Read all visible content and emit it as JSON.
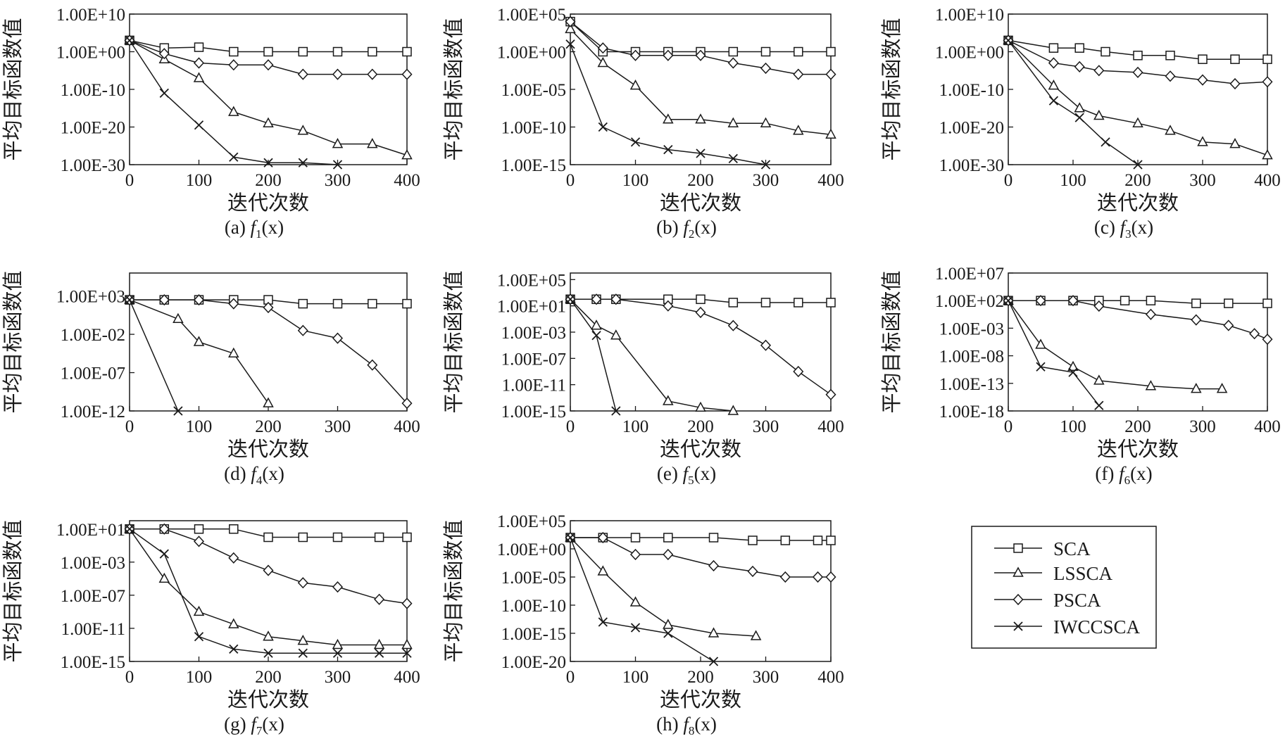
{
  "legend": {
    "items": [
      {
        "label": "SCA",
        "marker": "square"
      },
      {
        "label": "LSSCA",
        "marker": "triangle"
      },
      {
        "label": "PSCA",
        "marker": "diamond"
      },
      {
        "label": "IWCCSCA",
        "marker": "x"
      }
    ]
  },
  "chart_data": [
    {
      "panel": "a",
      "type": "line",
      "caption": {
        "prefix": "(a) ",
        "f": "f",
        "sub": "1",
        "suffix": "(x)"
      },
      "xlabel": "迭代次数",
      "ylabel": "平均目标函数值",
      "xlim": [
        0,
        400
      ],
      "xticks": [
        "0",
        "100",
        "200",
        "300",
        "400"
      ],
      "yscale": "log",
      "ylim_exp": [
        -30,
        10
      ],
      "yticks": [
        {
          "exp": 10,
          "label": "1.00E+10"
        },
        {
          "exp": 0,
          "label": "1.00E+00"
        },
        {
          "exp": -10,
          "label": "1.00E-10"
        },
        {
          "exp": -20,
          "label": "1.00E-20"
        },
        {
          "exp": -30,
          "label": "1.00E-30"
        }
      ],
      "series": [
        {
          "name": "SCA",
          "x": [
            0,
            50,
            100,
            150,
            200,
            250,
            300,
            350,
            400
          ],
          "y_exp": [
            3,
            1,
            1.2,
            0,
            0,
            0,
            0,
            0,
            0
          ]
        },
        {
          "name": "LSSCA",
          "x": [
            0,
            50,
            100,
            150,
            200,
            250,
            300,
            350,
            400
          ],
          "y_exp": [
            3,
            -2,
            -7,
            -16,
            -19,
            -21,
            -24.5,
            -24.5,
            -27.5
          ]
        },
        {
          "name": "PSCA",
          "x": [
            0,
            50,
            100,
            150,
            200,
            250,
            300,
            350,
            400
          ],
          "y_exp": [
            3,
            -0.5,
            -3,
            -3.5,
            -3.5,
            -6,
            -6,
            -6,
            -6
          ]
        },
        {
          "name": "IWCCSCA",
          "x": [
            0,
            50,
            100,
            150,
            200,
            250,
            300
          ],
          "y_exp": [
            3,
            -11,
            -19.5,
            -28,
            -29.5,
            -29.5,
            -30
          ]
        }
      ]
    },
    {
      "panel": "b",
      "type": "line",
      "caption": {
        "prefix": "(b) ",
        "f": "f",
        "sub": "2",
        "suffix": "(x)"
      },
      "xlabel": "迭代次数",
      "ylabel": "平均目标函数值",
      "xlim": [
        0,
        400
      ],
      "xticks": [
        "0",
        "100",
        "200",
        "300",
        "400"
      ],
      "yscale": "log",
      "ylim_exp": [
        -15,
        5
      ],
      "yticks": [
        {
          "exp": 5,
          "label": "1.00E+05"
        },
        {
          "exp": 0,
          "label": "1.00E+00"
        },
        {
          "exp": -5,
          "label": "1.00E-05"
        },
        {
          "exp": -10,
          "label": "1.00E-10"
        },
        {
          "exp": -15,
          "label": "1.00E-15"
        }
      ],
      "series": [
        {
          "name": "SCA",
          "x": [
            0,
            50,
            100,
            150,
            200,
            250,
            300,
            350,
            400
          ],
          "y_exp": [
            4,
            0,
            0,
            0,
            0,
            0,
            0,
            0,
            0
          ]
        },
        {
          "name": "LSSCA",
          "x": [
            0,
            50,
            100,
            150,
            200,
            250,
            300,
            350,
            400
          ],
          "y_exp": [
            3,
            -1.5,
            -4.5,
            -9,
            -9,
            -9.5,
            -9.5,
            -10.5,
            -11
          ]
        },
        {
          "name": "PSCA",
          "x": [
            0,
            50,
            100,
            150,
            200,
            250,
            300,
            350,
            400
          ],
          "y_exp": [
            4,
            0.5,
            -0.5,
            -0.5,
            -0.5,
            -1.5,
            -2.2,
            -3,
            -3
          ]
        },
        {
          "name": "IWCCSCA",
          "x": [
            0,
            50,
            100,
            150,
            200,
            250,
            300
          ],
          "y_exp": [
            1,
            -10,
            -12,
            -13,
            -13.5,
            -14.2,
            -15
          ]
        }
      ]
    },
    {
      "panel": "c",
      "type": "line",
      "caption": {
        "prefix": "(c) ",
        "f": "f",
        "sub": "3",
        "suffix": "(x)"
      },
      "xlabel": "迭代次数",
      "ylabel": "平均目标函数值",
      "xlim": [
        0,
        400
      ],
      "xticks": [
        "0",
        "100",
        "200",
        "300",
        "400"
      ],
      "yscale": "log",
      "ylim_exp": [
        -30,
        10
      ],
      "yticks": [
        {
          "exp": 10,
          "label": "1.00E+10"
        },
        {
          "exp": 0,
          "label": "1.00E+00"
        },
        {
          "exp": -10,
          "label": "1.00E-10"
        },
        {
          "exp": -20,
          "label": "1.00E-20"
        },
        {
          "exp": -30,
          "label": "1.00E-30"
        }
      ],
      "series": [
        {
          "name": "SCA",
          "x": [
            0,
            70,
            110,
            150,
            200,
            250,
            300,
            350,
            400
          ],
          "y_exp": [
            3,
            1,
            1,
            0,
            -1,
            -1,
            -2,
            -2,
            -2
          ]
        },
        {
          "name": "LSSCA",
          "x": [
            0,
            70,
            110,
            140,
            200,
            250,
            300,
            350,
            400
          ],
          "y_exp": [
            3,
            -9,
            -15,
            -17,
            -19,
            -21,
            -24,
            -24.5,
            -27.5
          ]
        },
        {
          "name": "PSCA",
          "x": [
            0,
            70,
            110,
            140,
            200,
            250,
            300,
            350,
            400
          ],
          "y_exp": [
            3,
            -3,
            -4,
            -5,
            -5.5,
            -6.5,
            -7.5,
            -8.5,
            -8
          ]
        },
        {
          "name": "IWCCSCA",
          "x": [
            0,
            70,
            110,
            150,
            200
          ],
          "y_exp": [
            3,
            -13,
            -17.5,
            -24,
            -30
          ]
        }
      ]
    },
    {
      "panel": "d",
      "type": "line",
      "caption": {
        "prefix": "(d) ",
        "f": "f",
        "sub": "4",
        "suffix": "(x)"
      },
      "xlabel": "迭代次数",
      "ylabel": "平均目标函数值",
      "xlim": [
        0,
        400
      ],
      "xticks": [
        "0",
        "100",
        "200",
        "300",
        "400"
      ],
      "yscale": "log",
      "ylim_exp": [
        -12,
        6
      ],
      "yticks": [
        {
          "exp": 3,
          "label": "1.00E+03"
        },
        {
          "exp": -2,
          "label": "1.00E-02"
        },
        {
          "exp": -7,
          "label": "1.00E-07"
        },
        {
          "exp": -12,
          "label": "1.00E-12"
        }
      ],
      "series": [
        {
          "name": "SCA",
          "x": [
            0,
            50,
            100,
            150,
            200,
            250,
            300,
            350,
            400
          ],
          "y_exp": [
            2.5,
            2.5,
            2.5,
            2.5,
            2.5,
            2,
            2,
            2,
            2
          ]
        },
        {
          "name": "LSSCA",
          "x": [
            0,
            70,
            100,
            150,
            200
          ],
          "y_exp": [
            2.5,
            0,
            -3,
            -4.5,
            -11
          ]
        },
        {
          "name": "PSCA",
          "x": [
            0,
            50,
            100,
            150,
            200,
            250,
            300,
            350,
            400
          ],
          "y_exp": [
            2.5,
            2.5,
            2.5,
            2,
            1.5,
            -1.5,
            -2.5,
            -6,
            -11
          ]
        },
        {
          "name": "IWCCSCA",
          "x": [
            0,
            70
          ],
          "y_exp": [
            2.5,
            -12
          ]
        }
      ]
    },
    {
      "panel": "e",
      "type": "line",
      "caption": {
        "prefix": "(e) ",
        "f": "f",
        "sub": "5",
        "suffix": "(x)"
      },
      "xlabel": "迭代次数",
      "ylabel": "平均目标函数值",
      "xlim": [
        0,
        400
      ],
      "xticks": [
        "0",
        "100",
        "200",
        "300",
        "400"
      ],
      "yscale": "log",
      "ylim_exp": [
        -15,
        6
      ],
      "yticks": [
        {
          "exp": 5,
          "label": "1.00E+05"
        },
        {
          "exp": 1,
          "label": "1.00E+01"
        },
        {
          "exp": -3,
          "label": "1.00E-03"
        },
        {
          "exp": -7,
          "label": "1.00E-07"
        },
        {
          "exp": -11,
          "label": "1.00E-11"
        },
        {
          "exp": -15,
          "label": "1.00E-15"
        }
      ],
      "series": [
        {
          "name": "SCA",
          "x": [
            0,
            40,
            70,
            150,
            200,
            250,
            300,
            350,
            400
          ],
          "y_exp": [
            2,
            2,
            2,
            2,
            2,
            1.5,
            1.5,
            1.5,
            1.5
          ]
        },
        {
          "name": "LSSCA",
          "x": [
            0,
            40,
            70,
            150,
            200,
            250
          ],
          "y_exp": [
            2,
            -2,
            -3.5,
            -13.5,
            -14.5,
            -15
          ]
        },
        {
          "name": "PSCA",
          "x": [
            0,
            40,
            70,
            150,
            200,
            250,
            300,
            350,
            400
          ],
          "y_exp": [
            2,
            2,
            2,
            1,
            0,
            -2,
            -5,
            -9,
            -12.5
          ]
        },
        {
          "name": "IWCCSCA",
          "x": [
            0,
            40,
            70
          ],
          "y_exp": [
            2,
            -3.5,
            -15
          ]
        }
      ]
    },
    {
      "panel": "f",
      "type": "line",
      "caption": {
        "prefix": "(f) ",
        "f": "f",
        "sub": "6",
        "suffix": "(x)"
      },
      "xlabel": "迭代次数",
      "ylabel": "平均目标函数值",
      "xlim": [
        0,
        400
      ],
      "xticks": [
        "0",
        "100",
        "200",
        "300",
        "400"
      ],
      "yscale": "log",
      "ylim_exp": [
        -18,
        7
      ],
      "yticks": [
        {
          "exp": 7,
          "label": "1.00E+07"
        },
        {
          "exp": 2,
          "label": "1.00E+02"
        },
        {
          "exp": -3,
          "label": "1.00E-03"
        },
        {
          "exp": -8,
          "label": "1.00E-08"
        },
        {
          "exp": -13,
          "label": "1.00E-13"
        },
        {
          "exp": -18,
          "label": "1.00E-18"
        }
      ],
      "series": [
        {
          "name": "SCA",
          "x": [
            0,
            50,
            100,
            140,
            180,
            220,
            290,
            340,
            400
          ],
          "y_exp": [
            2,
            2,
            2,
            2,
            2,
            2,
            1.5,
            1.5,
            1.5
          ]
        },
        {
          "name": "LSSCA",
          "x": [
            0,
            50,
            100,
            140,
            220,
            290,
            330
          ],
          "y_exp": [
            2,
            -6,
            -10,
            -12.5,
            -13.5,
            -14,
            -14
          ]
        },
        {
          "name": "PSCA",
          "x": [
            0,
            50,
            100,
            140,
            220,
            290,
            340,
            380,
            400
          ],
          "y_exp": [
            2,
            2,
            2,
            1,
            -0.5,
            -1.5,
            -2.5,
            -4,
            -5
          ]
        },
        {
          "name": "IWCCSCA",
          "x": [
            0,
            50,
            100,
            140
          ],
          "y_exp": [
            2,
            -10,
            -11,
            -17
          ]
        }
      ]
    },
    {
      "panel": "g",
      "type": "line",
      "caption": {
        "prefix": "(g) ",
        "f": "f",
        "sub": "7",
        "suffix": "(x)"
      },
      "xlabel": "迭代次数",
      "ylabel": "平均目标函数值",
      "xlim": [
        0,
        400
      ],
      "xticks": [
        "0",
        "100",
        "200",
        "300",
        "400"
      ],
      "yscale": "log",
      "ylim_exp": [
        -15,
        2
      ],
      "yticks": [
        {
          "exp": 1,
          "label": "1.00E+01"
        },
        {
          "exp": -3,
          "label": "1.00E-03"
        },
        {
          "exp": -7,
          "label": "1.00E-07"
        },
        {
          "exp": -11,
          "label": "1.00E-11"
        },
        {
          "exp": -15,
          "label": "1.00E-15"
        }
      ],
      "series": [
        {
          "name": "SCA",
          "x": [
            0,
            50,
            100,
            150,
            200,
            250,
            300,
            360,
            400
          ],
          "y_exp": [
            1,
            1,
            1,
            1,
            0,
            0,
            0,
            0,
            0
          ]
        },
        {
          "name": "LSSCA",
          "x": [
            0,
            50,
            100,
            150,
            200,
            250,
            300,
            360,
            400
          ],
          "y_exp": [
            1,
            -5,
            -9,
            -10.5,
            -12,
            -12.5,
            -13,
            -13,
            -13
          ]
        },
        {
          "name": "PSCA",
          "x": [
            0,
            50,
            100,
            150,
            200,
            250,
            300,
            360,
            400
          ],
          "y_exp": [
            1,
            1,
            -0.5,
            -2.5,
            -4,
            -5.5,
            -6,
            -7.5,
            -8
          ]
        },
        {
          "name": "IWCCSCA",
          "x": [
            0,
            50,
            100,
            150,
            200,
            250,
            300,
            360,
            400
          ],
          "y_exp": [
            1,
            -2,
            -12,
            -13.5,
            -14,
            -14,
            -14,
            -14,
            -14
          ]
        }
      ]
    },
    {
      "panel": "h",
      "type": "line",
      "caption": {
        "prefix": "(h) ",
        "f": "f",
        "sub": "8",
        "suffix": "(x)"
      },
      "xlabel": "迭代次数",
      "ylabel": "平均目标函数值",
      "xlim": [
        0,
        400
      ],
      "xticks": [
        "0",
        "100",
        "200",
        "300",
        "400"
      ],
      "yscale": "log",
      "ylim_exp": [
        -20,
        5
      ],
      "yticks": [
        {
          "exp": 5,
          "label": "1.00E+05"
        },
        {
          "exp": 0,
          "label": "1.00E+00"
        },
        {
          "exp": -5,
          "label": "1.00E-05"
        },
        {
          "exp": -10,
          "label": "1.00E-10"
        },
        {
          "exp": -15,
          "label": "1.00E-15"
        },
        {
          "exp": -20,
          "label": "1.00E-20"
        }
      ],
      "series": [
        {
          "name": "SCA",
          "x": [
            0,
            50,
            100,
            150,
            220,
            280,
            330,
            380,
            400
          ],
          "y_exp": [
            2,
            2,
            2,
            2,
            2,
            1.5,
            1.5,
            1.5,
            1.5
          ]
        },
        {
          "name": "LSSCA",
          "x": [
            0,
            50,
            100,
            150,
            220,
            285
          ],
          "y_exp": [
            2,
            -4,
            -9.5,
            -13.5,
            -15,
            -15.5
          ]
        },
        {
          "name": "PSCA",
          "x": [
            0,
            50,
            100,
            150,
            220,
            280,
            330,
            380,
            400
          ],
          "y_exp": [
            2,
            2,
            -1,
            -1,
            -3,
            -4,
            -5,
            -5,
            -5
          ]
        },
        {
          "name": "IWCCSCA",
          "x": [
            0,
            50,
            100,
            150,
            220
          ],
          "y_exp": [
            2,
            -13,
            -14,
            -15,
            -20
          ]
        }
      ]
    }
  ]
}
